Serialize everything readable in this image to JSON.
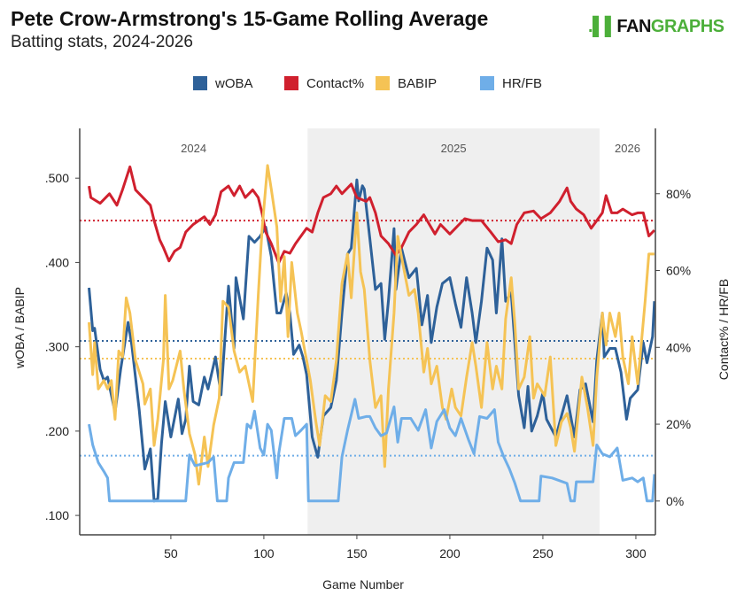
{
  "title": "Pete Crow-Armstrong's 15-Game Rolling Average",
  "subtitle": "Batting stats, 2024-2026",
  "logo": {
    "text": "FANGRAPHS",
    "text_dark": "FAN",
    "text_green": "GRAPHS",
    "color": "#4caf3a"
  },
  "chart_data": {
    "type": "line",
    "xlabel": "Game Number",
    "ylabel_left": "wOBA / BABIP",
    "ylabel_right": "Contact% / HR/FB",
    "xlim": [
      1,
      310.5
    ],
    "ylim_left": [
      0.077,
      0.559
    ],
    "ylim_right": [
      -8.8,
      97
    ],
    "x_ticks": [
      50,
      100,
      150,
      200,
      250,
      300
    ],
    "y_ticks_left": [
      {
        "v": 0.5,
        "label": ".500"
      },
      {
        "v": 0.4,
        "label": ".400"
      },
      {
        "v": 0.3,
        "label": ".300"
      },
      {
        "v": 0.2,
        "label": ".200"
      },
      {
        "v": 0.1,
        "label": ".100"
      }
    ],
    "y_ticks_right": [
      {
        "v": 80,
        "label": "80%"
      },
      {
        "v": 60,
        "label": "60%"
      },
      {
        "v": 40,
        "label": "40%"
      },
      {
        "v": 20,
        "label": "20%"
      },
      {
        "v": 0,
        "label": "0%"
      }
    ],
    "grid": false,
    "legend_position": "top",
    "seasons": [
      {
        "label": "2024",
        "start": 1,
        "end": 123.5,
        "shaded": false
      },
      {
        "label": "2025",
        "start": 123.5,
        "end": 280.5,
        "shaded": true
      },
      {
        "label": "2026",
        "start": 280.5,
        "end": 310.5,
        "shaded": false
      }
    ],
    "series": [
      {
        "name": "wOBA",
        "axis": "left",
        "color": "#2e6199",
        "average": 0.307,
        "x": [
          6,
          8,
          9,
          12,
          14,
          16,
          20,
          23,
          27,
          29,
          33,
          36,
          39,
          41,
          43,
          45,
          47,
          50,
          54,
          56,
          58,
          60,
          62,
          65,
          68,
          70,
          74,
          77,
          81,
          84,
          85,
          89,
          92,
          95,
          98,
          101,
          104,
          107,
          109,
          112,
          114,
          116,
          119,
          121,
          123,
          126,
          129,
          132,
          136,
          139,
          142,
          145,
          147,
          150,
          151,
          153,
          154,
          157,
          160,
          163,
          165,
          167,
          170,
          171,
          174,
          178,
          182,
          185,
          188,
          190,
          193,
          196,
          200,
          203,
          206,
          209,
          212,
          214,
          217,
          220,
          223,
          225,
          228,
          230,
          233,
          237,
          240,
          242,
          244,
          247,
          250,
          252,
          257,
          260,
          263,
          267,
          270,
          273,
          277,
          279,
          282,
          283,
          286,
          289,
          292,
          295,
          297,
          301,
          304,
          306,
          309,
          310
        ],
        "y": [
          0.37,
          0.319,
          0.322,
          0.273,
          0.26,
          0.264,
          0.222,
          0.273,
          0.329,
          0.302,
          0.225,
          0.155,
          0.179,
          0.117,
          0.12,
          0.186,
          0.235,
          0.193,
          0.238,
          0.197,
          0.214,
          0.277,
          0.235,
          0.231,
          0.264,
          0.25,
          0.288,
          0.243,
          0.372,
          0.298,
          0.382,
          0.333,
          0.431,
          0.424,
          0.431,
          0.442,
          0.407,
          0.34,
          0.34,
          0.364,
          0.34,
          0.291,
          0.302,
          0.288,
          0.267,
          0.193,
          0.169,
          0.218,
          0.228,
          0.26,
          0.34,
          0.41,
          0.417,
          0.498,
          0.473,
          0.491,
          0.487,
          0.428,
          0.368,
          0.375,
          0.309,
          0.355,
          0.44,
          0.368,
          0.417,
          0.382,
          0.393,
          0.326,
          0.361,
          0.305,
          0.347,
          0.375,
          0.382,
          0.351,
          0.323,
          0.382,
          0.34,
          0.305,
          0.354,
          0.417,
          0.403,
          0.34,
          0.428,
          0.354,
          0.364,
          0.242,
          0.204,
          0.253,
          0.2,
          0.218,
          0.245,
          0.214,
          0.193,
          0.218,
          0.242,
          0.193,
          0.249,
          0.256,
          0.211,
          0.284,
          0.34,
          0.288,
          0.298,
          0.298,
          0.27,
          0.214,
          0.239,
          0.249,
          0.305,
          0.281,
          0.312,
          0.354
        ]
      },
      {
        "name": "Contact%",
        "axis": "right",
        "color": "#d0202e",
        "average": 73,
        "x": [
          6,
          7,
          12,
          17,
          21,
          24,
          28,
          31,
          35,
          39,
          41,
          44,
          46,
          49,
          52,
          55,
          58,
          62,
          65,
          68,
          71,
          74,
          77,
          81,
          84,
          87,
          90,
          94,
          97,
          99,
          101,
          104,
          108,
          111,
          114,
          117,
          120,
          123,
          126,
          129,
          132,
          136,
          139,
          142,
          147,
          150,
          155,
          157,
          160,
          163,
          165,
          167,
          171,
          174,
          178,
          182,
          186,
          192,
          195,
          200,
          205,
          208,
          212,
          217,
          222,
          226,
          230,
          233,
          236,
          240,
          245,
          249,
          254,
          259,
          263,
          265,
          268,
          272,
          276,
          279,
          282,
          284,
          287,
          290,
          293,
          298,
          301,
          304,
          307,
          310
        ],
        "y": [
          82,
          79,
          77.5,
          80,
          77,
          81,
          87,
          81,
          79,
          77,
          73,
          68,
          66,
          62.5,
          65,
          66,
          70,
          72,
          73,
          74,
          72,
          74.5,
          80.5,
          82,
          79.5,
          82,
          79,
          81,
          79,
          75,
          70,
          67,
          62,
          65,
          64.5,
          67,
          69,
          71,
          70,
          75,
          79,
          80,
          82,
          80,
          82.5,
          79,
          78,
          79,
          75,
          69,
          68,
          67,
          64,
          66,
          70,
          72,
          74.5,
          69.5,
          72,
          69.5,
          72,
          73.5,
          73,
          73,
          70,
          67.5,
          68,
          67,
          72,
          75,
          75.5,
          73.5,
          75,
          78,
          81.5,
          78,
          76,
          74.5,
          71,
          73,
          75,
          79.5,
          75,
          75,
          76,
          74.5,
          75,
          75,
          69,
          70.5
        ]
      },
      {
        "name": "BABIP",
        "axis": "left",
        "color": "#f5c355",
        "average": 0.286,
        "x": [
          6,
          8,
          9,
          11,
          14,
          16,
          18,
          20,
          22,
          24,
          26,
          28,
          31,
          35,
          36,
          39,
          41,
          43,
          46,
          47,
          49,
          51,
          55,
          57,
          60,
          63,
          65,
          68,
          70,
          73,
          76,
          78,
          81,
          84,
          87,
          90,
          94,
          97,
          99,
          102,
          104,
          107,
          109,
          111,
          113,
          115,
          118,
          120,
          123,
          125,
          128,
          130,
          133,
          136,
          139,
          142,
          145,
          147,
          150,
          152,
          154,
          157,
          160,
          163,
          165,
          167,
          170,
          172,
          174,
          178,
          181,
          183,
          186,
          188,
          190,
          193,
          196,
          198,
          201,
          203,
          206,
          209,
          212,
          214,
          217,
          220,
          223,
          225,
          228,
          230,
          233,
          235,
          237,
          240,
          243,
          245,
          247,
          251,
          254,
          257,
          260,
          263,
          265,
          267,
          271,
          274,
          277,
          279,
          282,
          284,
          286,
          289,
          291,
          293,
          296,
          298,
          301,
          305,
          307,
          310
        ],
        "y": [
          0.329,
          0.267,
          0.305,
          0.25,
          0.26,
          0.25,
          0.26,
          0.214,
          0.295,
          0.288,
          0.358,
          0.34,
          0.284,
          0.256,
          0.232,
          0.25,
          0.183,
          0.214,
          0.284,
          0.361,
          0.25,
          0.26,
          0.295,
          0.25,
          0.197,
          0.172,
          0.137,
          0.193,
          0.158,
          0.207,
          0.239,
          0.354,
          0.347,
          0.295,
          0.27,
          0.277,
          0.235,
          0.361,
          0.438,
          0.515,
          0.487,
          0.442,
          0.354,
          0.407,
          0.312,
          0.4,
          0.34,
          0.319,
          0.284,
          0.26,
          0.211,
          0.183,
          0.242,
          0.235,
          0.284,
          0.375,
          0.41,
          0.358,
          0.459,
          0.389,
          0.368,
          0.284,
          0.228,
          0.242,
          0.158,
          0.25,
          0.34,
          0.431,
          0.407,
          0.361,
          0.368,
          0.34,
          0.27,
          0.298,
          0.256,
          0.277,
          0.228,
          0.214,
          0.25,
          0.228,
          0.218,
          0.264,
          0.305,
          0.277,
          0.228,
          0.305,
          0.25,
          0.277,
          0.25,
          0.333,
          0.382,
          0.326,
          0.25,
          0.264,
          0.312,
          0.239,
          0.256,
          0.242,
          0.288,
          0.183,
          0.211,
          0.221,
          0.204,
          0.176,
          0.264,
          0.228,
          0.183,
          0.264,
          0.34,
          0.302,
          0.34,
          0.312,
          0.34,
          0.288,
          0.256,
          0.312,
          0.256,
          0.354,
          0.41,
          0.41
        ]
      },
      {
        "name": "HR/FB",
        "axis": "right",
        "color": "#6faee8",
        "average": 11.8,
        "x": [
          6,
          8,
          11,
          14,
          16,
          17,
          58,
          60,
          63,
          70,
          73,
          75,
          80,
          81,
          84,
          89,
          91,
          93,
          95,
          98,
          100,
          102,
          104,
          107,
          108,
          111,
          115,
          117,
          120,
          123,
          124,
          140,
          142,
          145,
          149,
          151,
          155,
          157,
          160,
          163,
          166,
          170,
          172,
          174,
          179,
          183,
          187,
          190,
          193,
          197,
          200,
          203,
          206,
          210,
          213,
          216,
          220,
          224,
          226,
          229,
          232,
          235,
          238,
          248,
          249,
          255,
          263,
          265,
          267,
          268,
          277,
          279,
          282,
          286,
          290,
          293,
          298,
          301,
          304,
          306,
          309,
          310
        ],
        "y": [
          20,
          14.6,
          10,
          7.7,
          6,
          0,
          0,
          12,
          9.2,
          10,
          11.5,
          0,
          0,
          6,
          10,
          10,
          20,
          19,
          23.4,
          13.8,
          12,
          20,
          18.4,
          6,
          12.3,
          21.5,
          21.5,
          17,
          18.4,
          20,
          0,
          0,
          11.5,
          18.4,
          26.5,
          21.5,
          22,
          22,
          19,
          17,
          17.7,
          24.5,
          15.3,
          21.5,
          21.5,
          18.4,
          23.8,
          13.8,
          20.7,
          23.8,
          19,
          17,
          21.5,
          16,
          12.3,
          22,
          21.5,
          23.8,
          15.3,
          11.5,
          8.4,
          4.6,
          0,
          0,
          6.5,
          6,
          4.6,
          0,
          0,
          5,
          5,
          14.6,
          12.3,
          11.5,
          13.8,
          5.4,
          6,
          5,
          6,
          0,
          0,
          7
        ]
      }
    ]
  }
}
